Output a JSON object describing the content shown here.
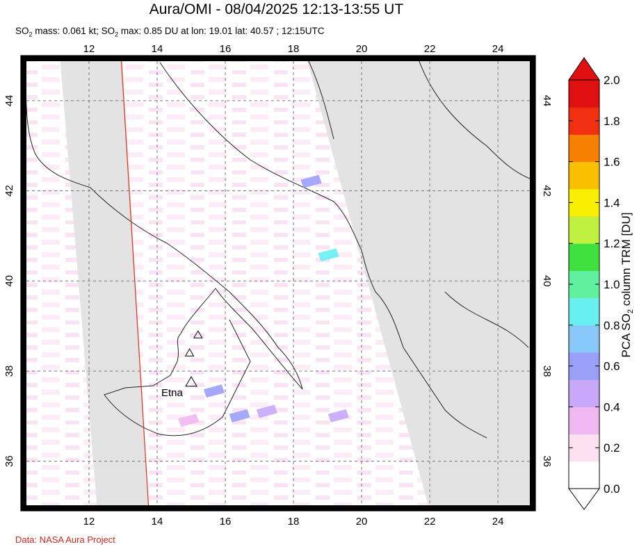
{
  "title": "Aura/OMI - 08/04/2025 12:13-13:55 UT",
  "subtitle": {
    "p1": "SO",
    "s1": "2",
    "p2": " mass: 0.061 kt; SO",
    "s2": "2",
    "p3": " max: 0.85 DU at lon: 19.01 lat: 40.57 ; 12:15UTC"
  },
  "credit": "Data: NASA Aura Project",
  "map": {
    "lon_labels": [
      "12",
      "14",
      "16",
      "18",
      "20",
      "22",
      "24"
    ],
    "lat_labels": [
      "44",
      "42",
      "40",
      "38",
      "36"
    ],
    "lon_range": [
      10.0,
      25.1
    ],
    "lat_range": [
      34.9,
      45.0
    ],
    "volcano_label": "Etna",
    "volcanoes": [
      {
        "name": "Etna",
        "lon": 15.0,
        "lat": 37.75
      },
      {
        "name": "",
        "lon": 15.2,
        "lat": 38.8
      },
      {
        "name": "",
        "lon": 14.95,
        "lat": 38.4
      }
    ],
    "swath_gap_color": "#e3e3e3",
    "orbit_line_color": "#e0301e"
  },
  "colorbar": {
    "label_parts": [
      "PCA SO",
      "2",
      " column TRM [DU]"
    ],
    "ticks": [
      "0.0",
      "0.2",
      "0.4",
      "0.6",
      "0.8",
      "1.0",
      "1.2",
      "1.4",
      "1.6",
      "1.8",
      "2.0"
    ],
    "range": [
      0.0,
      2.0
    ],
    "colors": [
      "#ffffff",
      "#fde0f0",
      "#f0b8f0",
      "#c8a8f8",
      "#9aa0f8",
      "#88c8f8",
      "#68f0f0",
      "#60f0a0",
      "#40e040",
      "#c0f040",
      "#f8f000",
      "#f8c000",
      "#f88000",
      "#f03010",
      "#e01010"
    ]
  },
  "plumes": [
    {
      "lon": 15.65,
      "lat": 37.55,
      "du": 0.55
    },
    {
      "lon": 16.4,
      "lat": 37.0,
      "du": 0.5
    },
    {
      "lon": 17.2,
      "lat": 37.1,
      "du": 0.45
    },
    {
      "lon": 19.01,
      "lat": 40.57,
      "du": 0.85
    },
    {
      "lon": 18.5,
      "lat": 42.2,
      "du": 0.5
    },
    {
      "lon": 14.9,
      "lat": 36.9,
      "du": 0.35
    },
    {
      "lon": 19.3,
      "lat": 37.0,
      "du": 0.4
    }
  ]
}
